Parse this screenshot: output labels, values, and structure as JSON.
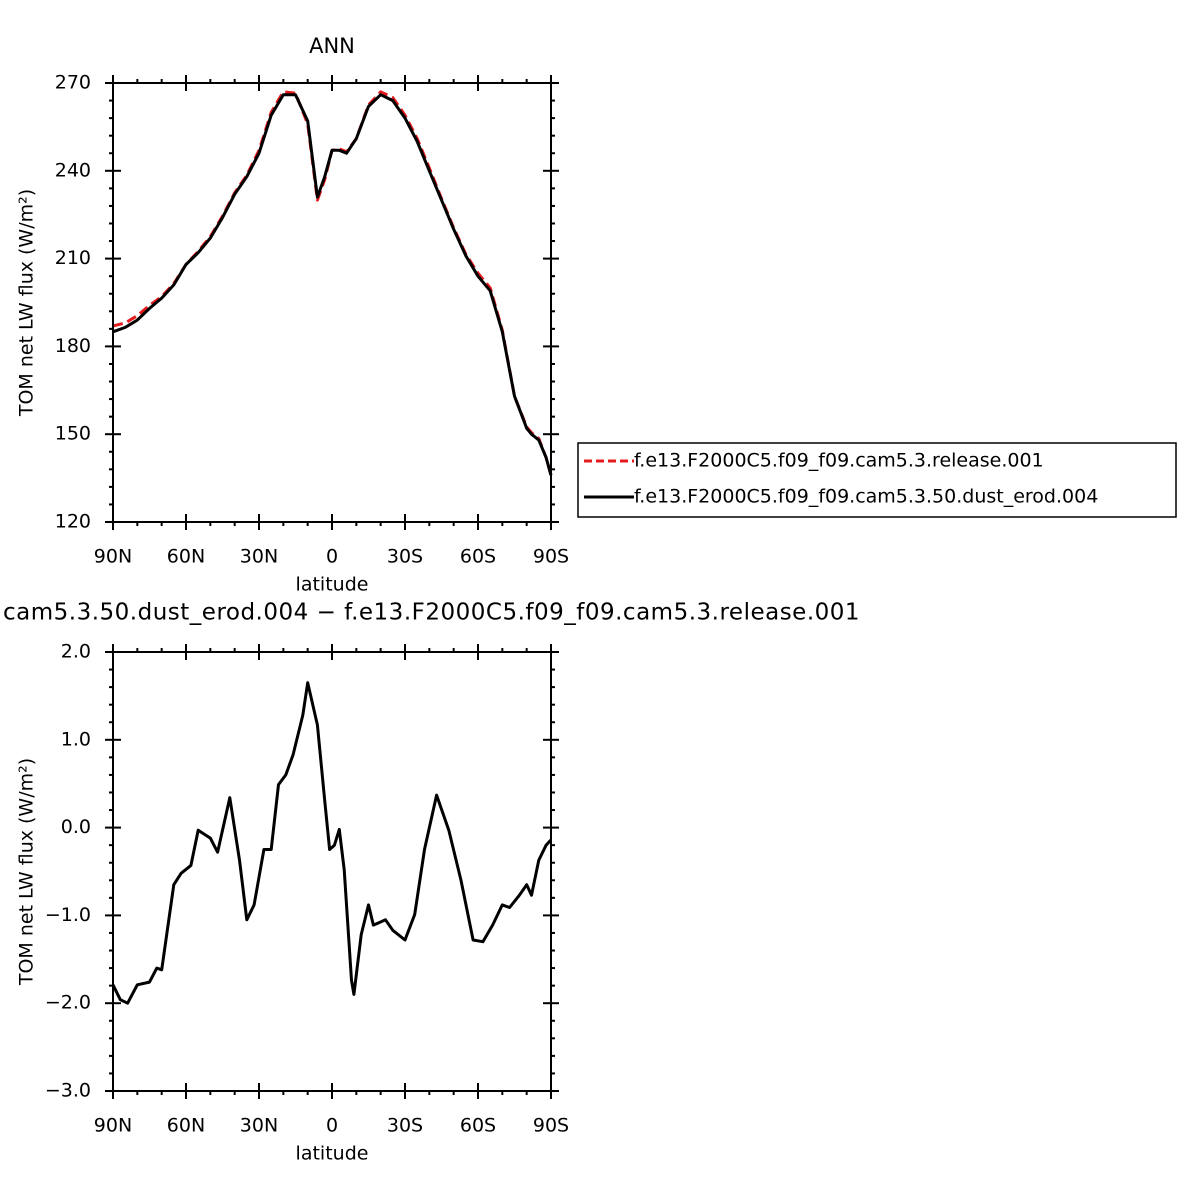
{
  "chart_data": [
    {
      "type": "line",
      "title": "ANN",
      "xlabel": "latitude",
      "ylabel": "TOM net LW flux (W/m²)",
      "xlim": [
        90,
        -90
      ],
      "ylim": [
        120,
        270
      ],
      "xticks": [
        {
          "value": 90,
          "label": "90N"
        },
        {
          "value": 60,
          "label": "60N"
        },
        {
          "value": 30,
          "label": "30N"
        },
        0,
        {
          "value": -30,
          "label": "30S"
        },
        {
          "value": -60,
          "label": "60S"
        },
        {
          "value": -90,
          "label": "90S"
        }
      ],
      "yticks": [
        120,
        150,
        180,
        210,
        240,
        270
      ],
      "legend": "right",
      "x": [
        90,
        85,
        80,
        75,
        70,
        65,
        60,
        55,
        50,
        45,
        40,
        35,
        30,
        25,
        20,
        15,
        10,
        6,
        3,
        0,
        -3,
        -6,
        -10,
        -15,
        -20,
        -25,
        -30,
        -35,
        -40,
        -45,
        -50,
        -55,
        -60,
        -65,
        -70,
        -75,
        -80,
        -82,
        -85,
        -88,
        -90
      ],
      "series": [
        {
          "name": "f.e13.F2000C5.f09_f09.cam5.3.release.001",
          "color": "#e41a1c",
          "dash": true,
          "values": [
            187,
            188,
            190.5,
            194,
            197,
            201.5,
            208,
            212.5,
            217.5,
            224.5,
            232.5,
            238.5,
            247,
            260,
            267,
            266.5,
            256,
            230,
            237,
            247,
            247.5,
            246.5,
            251,
            262.5,
            267,
            265,
            259,
            251,
            241,
            230.5,
            220.5,
            211.5,
            205,
            200,
            185.5,
            163,
            152.5,
            150.5,
            148.5,
            142,
            136
          ]
        },
        {
          "name": "f.e13.F2000C5.f09_f09.cam5.3.50.dust_erod.004",
          "color": "#000000",
          "dash": false,
          "values": [
            185,
            186.5,
            189,
            193,
            196.5,
            201,
            208,
            212,
            217,
            224,
            232,
            238,
            246,
            259,
            266,
            266,
            257,
            231,
            238,
            247,
            247,
            246,
            251,
            262,
            266,
            264,
            258,
            250,
            240,
            230,
            220,
            211,
            204,
            199,
            185,
            163,
            152,
            150,
            148,
            142,
            136
          ]
        }
      ]
    },
    {
      "type": "line",
      "title": "cam5.3.50.dust_erod.004 − f.e13.F2000C5.f09_f09.cam5.3.release.001",
      "xlabel": "latitude",
      "ylabel": "TOM net LW flux (W/m²)",
      "xlim": [
        90,
        -90
      ],
      "ylim": [
        -3,
        2
      ],
      "xticks": [
        {
          "value": 90,
          "label": "90N"
        },
        {
          "value": 60,
          "label": "60N"
        },
        {
          "value": 30,
          "label": "30N"
        },
        0,
        {
          "value": -30,
          "label": "30S"
        },
        {
          "value": -60,
          "label": "60S"
        },
        {
          "value": -90,
          "label": "90S"
        }
      ],
      "yticks": [
        {
          "value": -3,
          "label": "−3.0"
        },
        {
          "value": -2,
          "label": "−2.0"
        },
        {
          "value": -1,
          "label": "−1.0"
        },
        {
          "value": 0,
          "label": "0.0"
        },
        {
          "value": 1,
          "label": "1.0"
        },
        {
          "value": 2,
          "label": "2.0"
        }
      ],
      "x": [
        90,
        87,
        84,
        80,
        75,
        72,
        70,
        65,
        62,
        58,
        55,
        50,
        47,
        42,
        38,
        35,
        32,
        28,
        25,
        22,
        19,
        16,
        12,
        10,
        6,
        3,
        1,
        -1,
        -3,
        -5,
        -8,
        -9,
        -12,
        -15,
        -17,
        -22,
        -25,
        -30,
        -34,
        -38,
        -43,
        -48,
        -53,
        -58,
        -62,
        -66,
        -70,
        -73,
        -77,
        -80,
        -82,
        -85,
        -88,
        -90
      ],
      "series": [
        {
          "color": "#000000",
          "dash": false,
          "values": [
            -1.79,
            -1.96,
            -2.0,
            -1.79,
            -1.76,
            -1.6,
            -1.62,
            -0.65,
            -0.52,
            -0.43,
            -0.03,
            -0.12,
            -0.28,
            0.34,
            -0.37,
            -1.05,
            -0.88,
            -0.25,
            -0.25,
            0.49,
            0.6,
            0.83,
            1.28,
            1.65,
            1.17,
            0.31,
            -0.25,
            -0.2,
            -0.02,
            -0.48,
            -1.74,
            -1.9,
            -1.22,
            -0.88,
            -1.11,
            -1.05,
            -1.17,
            -1.28,
            -0.99,
            -0.25,
            0.37,
            -0.03,
            -0.6,
            -1.28,
            -1.3,
            -1.11,
            -0.88,
            -0.91,
            -0.77,
            -0.65,
            -0.77,
            -0.37,
            -0.2,
            -0.14
          ]
        }
      ]
    }
  ]
}
